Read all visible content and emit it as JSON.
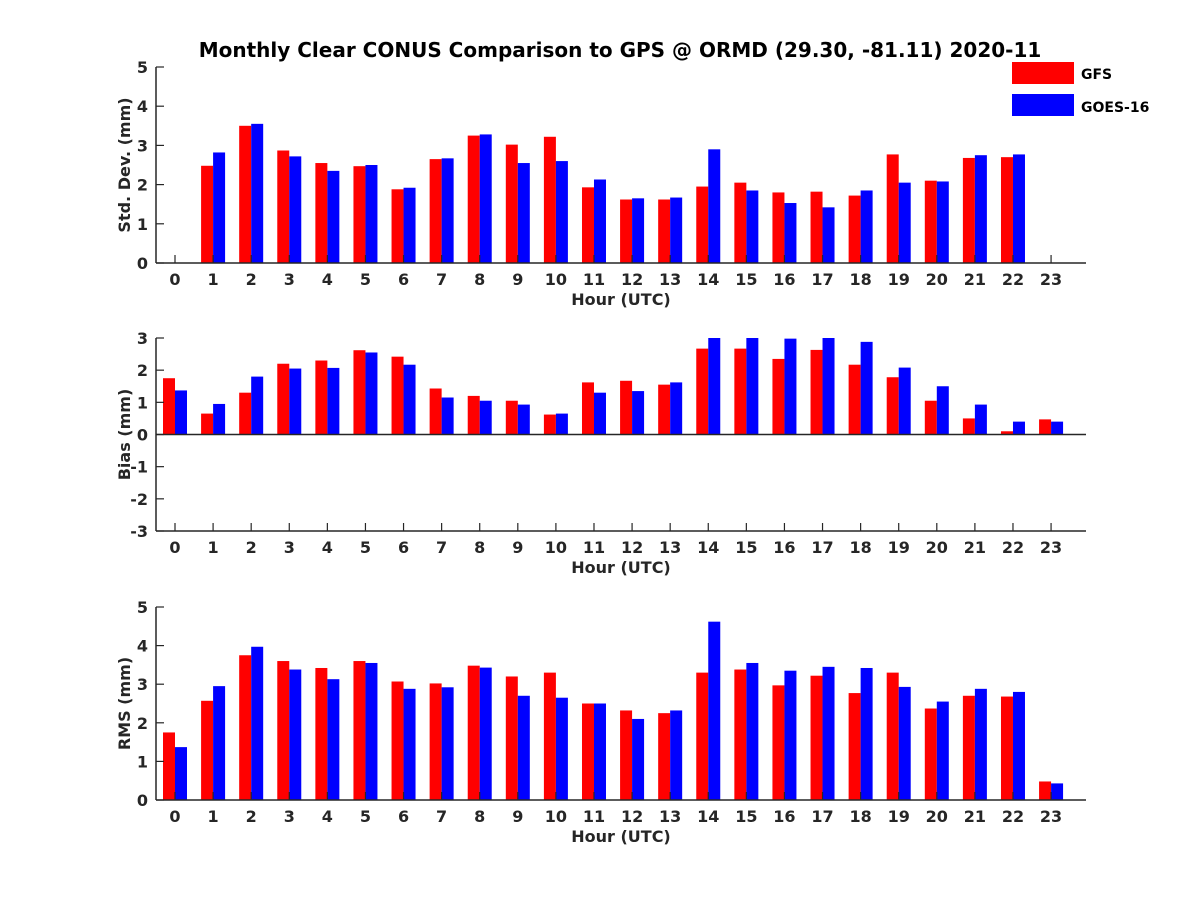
{
  "title": "Monthly Clear CONUS Comparison to GPS @ ORMD (29.30, -81.11) 2020-11",
  "legend": [
    {
      "name": "GFS",
      "color": "#ff0000"
    },
    {
      "name": "GOES-16",
      "color": "#0000ff"
    }
  ],
  "legend_position": "top-right",
  "chart_data": [
    {
      "type": "bar",
      "ylabel": "Std. Dev. (mm)",
      "xlabel": "Hour (UTC)",
      "ylim": [
        0,
        5
      ],
      "yticks": [
        0,
        1,
        2,
        3,
        4,
        5
      ],
      "categories": [
        "0",
        "1",
        "2",
        "3",
        "4",
        "5",
        "6",
        "7",
        "8",
        "9",
        "10",
        "11",
        "12",
        "13",
        "14",
        "15",
        "16",
        "17",
        "18",
        "19",
        "20",
        "21",
        "22",
        "23"
      ],
      "series": [
        {
          "name": "GFS",
          "color": "#ff0000",
          "values": [
            null,
            2.48,
            3.5,
            2.87,
            2.55,
            2.47,
            1.88,
            2.65,
            3.25,
            3.02,
            3.22,
            1.93,
            1.62,
            1.62,
            1.95,
            2.05,
            1.8,
            1.82,
            1.72,
            2.77,
            2.1,
            2.68,
            2.7,
            null
          ]
        },
        {
          "name": "GOES-16",
          "color": "#0000ff",
          "values": [
            null,
            2.82,
            3.55,
            2.72,
            2.35,
            2.5,
            1.92,
            2.67,
            3.28,
            2.55,
            2.6,
            2.13,
            1.65,
            1.67,
            2.9,
            1.85,
            1.53,
            1.42,
            1.85,
            2.05,
            2.08,
            2.75,
            2.77,
            null
          ]
        }
      ]
    },
    {
      "type": "bar",
      "ylabel": "Bias (mm)",
      "xlabel": "Hour (UTC)",
      "ylim": [
        -3,
        3
      ],
      "yticks": [
        -3,
        -2,
        -1,
        0,
        1,
        2,
        3
      ],
      "categories": [
        "0",
        "1",
        "2",
        "3",
        "4",
        "5",
        "6",
        "7",
        "8",
        "9",
        "10",
        "11",
        "12",
        "13",
        "14",
        "15",
        "16",
        "17",
        "18",
        "19",
        "20",
        "21",
        "22",
        "23"
      ],
      "series": [
        {
          "name": "GFS",
          "color": "#ff0000",
          "values": [
            1.75,
            0.65,
            1.3,
            2.2,
            2.3,
            2.62,
            2.42,
            1.43,
            1.2,
            1.05,
            0.62,
            1.62,
            1.67,
            1.55,
            2.67,
            2.67,
            2.35,
            2.63,
            2.17,
            1.78,
            1.05,
            0.5,
            0.1,
            0.47
          ]
        },
        {
          "name": "GOES-16",
          "color": "#0000ff",
          "values": [
            1.37,
            0.95,
            1.8,
            2.05,
            2.07,
            2.55,
            2.17,
            1.15,
            1.05,
            0.93,
            0.65,
            1.3,
            1.35,
            1.62,
            3.0,
            3.0,
            2.98,
            3.0,
            2.88,
            2.08,
            1.5,
            0.93,
            0.4,
            0.4
          ]
        }
      ]
    },
    {
      "type": "bar",
      "ylabel": "RMS (mm)",
      "xlabel": "Hour (UTC)",
      "ylim": [
        0,
        5
      ],
      "yticks": [
        0,
        1,
        2,
        3,
        4,
        5
      ],
      "categories": [
        "0",
        "1",
        "2",
        "3",
        "4",
        "5",
        "6",
        "7",
        "8",
        "9",
        "10",
        "11",
        "12",
        "13",
        "14",
        "15",
        "16",
        "17",
        "18",
        "19",
        "20",
        "21",
        "22",
        "23"
      ],
      "series": [
        {
          "name": "GFS",
          "color": "#ff0000",
          "values": [
            1.75,
            2.57,
            3.75,
            3.6,
            3.42,
            3.6,
            3.07,
            3.02,
            3.48,
            3.2,
            3.3,
            2.5,
            2.32,
            2.25,
            3.3,
            3.38,
            2.97,
            3.22,
            2.77,
            3.3,
            2.37,
            2.7,
            2.68,
            0.48
          ]
        },
        {
          "name": "GOES-16",
          "color": "#0000ff",
          "values": [
            1.37,
            2.95,
            3.97,
            3.38,
            3.13,
            3.55,
            2.88,
            2.92,
            3.43,
            2.7,
            2.65,
            2.5,
            2.1,
            2.32,
            4.62,
            3.55,
            3.35,
            3.45,
            3.42,
            2.93,
            2.55,
            2.88,
            2.8,
            0.43
          ]
        }
      ]
    }
  ]
}
